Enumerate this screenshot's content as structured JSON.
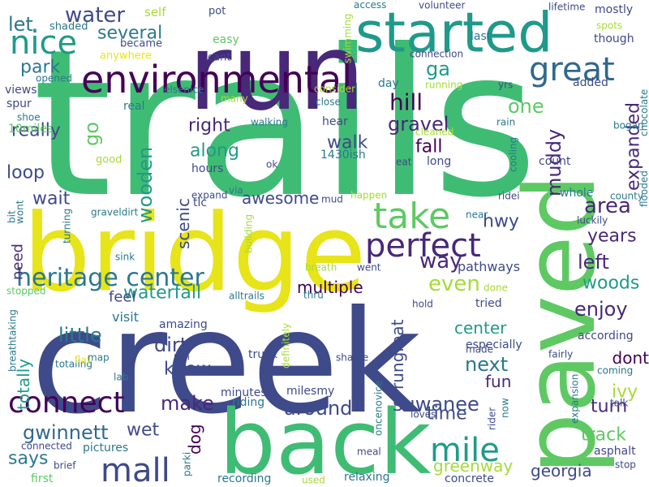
{
  "colors": {
    "background": "#ffffff",
    "green": "#3fbc73",
    "navy": "#3e4a89",
    "purple": "#482878",
    "yellow": "#e7e419",
    "lime": "#a5db36",
    "teal": "#2a788e",
    "cyan": "#1f9a8a",
    "indigo": "#31688e",
    "mint": "#5ec962",
    "violet": "#440154"
  },
  "words": [
    {
      "text": "trails",
      "color": "green"
    },
    {
      "text": "creek",
      "color": "navy"
    },
    {
      "text": "run",
      "color": "purple"
    },
    {
      "text": "bridge",
      "color": "yellow"
    },
    {
      "text": "paved",
      "color": "mint"
    },
    {
      "text": "back",
      "color": "green"
    },
    {
      "text": "started",
      "color": "cyan"
    },
    {
      "text": "environmental",
      "color": "violet"
    },
    {
      "text": "nice",
      "color": "cyan"
    },
    {
      "text": "great",
      "color": "indigo"
    },
    {
      "text": "take",
      "color": "mint"
    },
    {
      "text": "perfect",
      "color": "purple"
    },
    {
      "text": "heritage center",
      "color": "teal"
    },
    {
      "text": "connect",
      "color": "violet"
    },
    {
      "text": "mall",
      "color": "navy"
    },
    {
      "text": "mile",
      "color": "cyan"
    },
    {
      "text": "water",
      "color": "navy"
    },
    {
      "text": "let",
      "color": "teal"
    },
    {
      "text": "several",
      "color": "teal"
    },
    {
      "text": "park",
      "color": "teal"
    },
    {
      "text": "ga",
      "color": "cyan"
    },
    {
      "text": "hill",
      "color": "violet"
    },
    {
      "text": "one",
      "color": "mint"
    },
    {
      "text": "gravel",
      "color": "purple"
    },
    {
      "text": "really",
      "color": "navy"
    },
    {
      "text": "go",
      "color": "mint"
    },
    {
      "text": "right",
      "color": "purple"
    },
    {
      "text": "walk",
      "color": "navy"
    },
    {
      "text": "fall",
      "color": "violet"
    },
    {
      "text": "muddy",
      "color": "purple"
    },
    {
      "text": "expanded",
      "color": "purple"
    },
    {
      "text": "along",
      "color": "cyan"
    },
    {
      "text": "loop",
      "color": "navy"
    },
    {
      "text": "wooden",
      "color": "cyan"
    },
    {
      "text": "wait",
      "color": "navy"
    },
    {
      "text": "awesome",
      "color": "navy"
    },
    {
      "text": "area",
      "color": "purple"
    },
    {
      "text": "hwy",
      "color": "navy"
    },
    {
      "text": "way",
      "color": "purple"
    },
    {
      "text": "scenic",
      "color": "navy"
    },
    {
      "text": "years",
      "color": "purple"
    },
    {
      "text": "left",
      "color": "purple"
    },
    {
      "text": "woods",
      "color": "cyan"
    },
    {
      "text": "waterfall",
      "color": "cyan"
    },
    {
      "text": "multiple",
      "color": "violet"
    },
    {
      "text": "even",
      "color": "lime"
    },
    {
      "text": "enjoy",
      "color": "purple"
    },
    {
      "text": "little",
      "color": "teal"
    },
    {
      "text": "dirt",
      "color": "navy"
    },
    {
      "text": "totally",
      "color": "cyan"
    },
    {
      "text": "center",
      "color": "cyan"
    },
    {
      "text": "know",
      "color": "navy"
    },
    {
      "text": "next",
      "color": "teal"
    },
    {
      "text": "fun",
      "color": "purple"
    },
    {
      "text": "dont",
      "color": "violet"
    },
    {
      "text": "ivy",
      "color": "lime"
    },
    {
      "text": "make",
      "color": "purple"
    },
    {
      "text": "around",
      "color": "navy"
    },
    {
      "text": "rungreat",
      "color": "navy"
    },
    {
      "text": "suwanee",
      "color": "navy"
    },
    {
      "text": "time",
      "color": "navy"
    },
    {
      "text": "turn",
      "color": "purple"
    },
    {
      "text": "track",
      "color": "mint"
    },
    {
      "text": "gwinnett",
      "color": "indigo"
    },
    {
      "text": "wet",
      "color": "navy"
    },
    {
      "text": "dog",
      "color": "violet"
    },
    {
      "text": "says",
      "color": "teal"
    },
    {
      "text": "greenway",
      "color": "lime"
    },
    {
      "text": "georgia",
      "color": "navy"
    },
    {
      "text": "need",
      "color": "purple"
    },
    {
      "text": "feel",
      "color": "navy"
    },
    {
      "text": "visit",
      "color": "teal"
    },
    {
      "text": "pathways",
      "color": "navy"
    },
    {
      "text": "self",
      "color": "lime"
    },
    {
      "text": "pot",
      "color": "navy"
    },
    {
      "text": "access",
      "color": "teal"
    },
    {
      "text": "volunteer",
      "color": "navy"
    },
    {
      "text": "lifetime",
      "color": "navy"
    },
    {
      "text": "mostly",
      "color": "navy"
    },
    {
      "text": "spots",
      "color": "lime"
    },
    {
      "text": "though",
      "color": "navy"
    },
    {
      "text": "last",
      "color": "teal"
    },
    {
      "text": "shaded",
      "color": "teal"
    },
    {
      "text": "easy",
      "color": "mint"
    },
    {
      "text": "swimming",
      "color": "lime"
    },
    {
      "text": "became",
      "color": "navy"
    },
    {
      "text": "anywhere",
      "color": "yellow"
    },
    {
      "text": "cant",
      "color": "navy"
    },
    {
      "text": "connection",
      "color": "navy"
    },
    {
      "text": "opened",
      "color": "teal"
    },
    {
      "text": "elsenice",
      "color": "teal"
    },
    {
      "text": "consider",
      "color": "lime"
    },
    {
      "text": "day",
      "color": "teal"
    },
    {
      "text": "running",
      "color": "lime"
    },
    {
      "text": "yrs",
      "color": "navy"
    },
    {
      "text": "added",
      "color": "navy"
    },
    {
      "text": "views",
      "color": "navy"
    },
    {
      "text": "spur",
      "color": "navy"
    },
    {
      "text": "shoe",
      "color": "teal"
    },
    {
      "text": "real",
      "color": "teal"
    },
    {
      "text": "many",
      "color": "lime"
    },
    {
      "text": "close",
      "color": "teal"
    },
    {
      "text": "walking",
      "color": "teal"
    },
    {
      "text": "hear",
      "color": "navy"
    },
    {
      "text": "rain",
      "color": "teal"
    },
    {
      "text": "bogan",
      "color": "teal"
    },
    {
      "text": "chocolate",
      "color": "teal"
    },
    {
      "text": "10miles",
      "color": "mint"
    },
    {
      "text": "hours",
      "color": "navy"
    },
    {
      "text": "cleaned",
      "color": "lime"
    },
    {
      "text": "1430ish",
      "color": "teal"
    },
    {
      "text": "eat",
      "color": "navy"
    },
    {
      "text": "long",
      "color": "navy"
    },
    {
      "text": "cooling",
      "color": "teal"
    },
    {
      "text": "count",
      "color": "navy"
    },
    {
      "text": "good",
      "color": "lime"
    },
    {
      "text": "ok",
      "color": "navy"
    },
    {
      "text": "tlc",
      "color": "navy"
    },
    {
      "text": "via",
      "color": "teal"
    },
    {
      "text": "mud",
      "color": "navy"
    },
    {
      "text": "expand",
      "color": "navy"
    },
    {
      "text": "happen",
      "color": "lime"
    },
    {
      "text": "ridei",
      "color": "navy"
    },
    {
      "text": "whole",
      "color": "teal"
    },
    {
      "text": "county",
      "color": "teal"
    },
    {
      "text": "flooded",
      "color": "teal"
    },
    {
      "text": "bit",
      "color": "teal"
    },
    {
      "text": "wont",
      "color": "teal"
    },
    {
      "text": "graveldirt",
      "color": "teal"
    },
    {
      "text": "turning",
      "color": "teal"
    },
    {
      "text": "sink",
      "color": "teal"
    },
    {
      "text": "building",
      "color": "lime"
    },
    {
      "text": "near",
      "color": "teal"
    },
    {
      "text": "luckily",
      "color": "navy"
    },
    {
      "text": "breath",
      "color": "lime"
    },
    {
      "text": "went",
      "color": "navy"
    },
    {
      "text": "done",
      "color": "lime"
    },
    {
      "text": "stopped",
      "color": "mint"
    },
    {
      "text": "breathtaking",
      "color": "teal"
    },
    {
      "text": "alltrails",
      "color": "teal"
    },
    {
      "text": "thru",
      "color": "teal"
    },
    {
      "text": "hold",
      "color": "navy"
    },
    {
      "text": "tried",
      "color": "navy"
    },
    {
      "text": "amazing",
      "color": "navy"
    },
    {
      "text": "especially",
      "color": "navy"
    },
    {
      "text": "according",
      "color": "navy"
    },
    {
      "text": "totaling",
      "color": "teal"
    },
    {
      "text": "flat",
      "color": "yellow"
    },
    {
      "text": "map",
      "color": "teal"
    },
    {
      "text": "truck",
      "color": "navy"
    },
    {
      "text": "definitely",
      "color": "lime"
    },
    {
      "text": "made",
      "color": "navy"
    },
    {
      "text": "fairly",
      "color": "navy"
    },
    {
      "text": "shame",
      "color": "navy"
    },
    {
      "text": "coming",
      "color": "teal"
    },
    {
      "text": "lab",
      "color": "teal"
    },
    {
      "text": "ran",
      "color": "navy"
    },
    {
      "text": "minutes",
      "color": "navy"
    },
    {
      "text": "milesmy",
      "color": "navy"
    },
    {
      "text": "riding",
      "color": "teal"
    },
    {
      "text": "oncenovice",
      "color": "teal"
    },
    {
      "text": "loves",
      "color": "navy"
    },
    {
      "text": "rider",
      "color": "navy"
    },
    {
      "text": "now",
      "color": "teal"
    },
    {
      "text": "expansion",
      "color": "teal"
    },
    {
      "text": "talk",
      "color": "navy"
    },
    {
      "text": "asphalt",
      "color": "navy"
    },
    {
      "text": "stop",
      "color": "navy"
    },
    {
      "text": "connected",
      "color": "navy"
    },
    {
      "text": "pictures",
      "color": "teal"
    },
    {
      "text": "brief",
      "color": "navy"
    },
    {
      "text": "parki",
      "color": "teal"
    },
    {
      "text": "meal",
      "color": "navy"
    },
    {
      "text": "first",
      "color": "mint"
    },
    {
      "text": "recording",
      "color": "teal"
    },
    {
      "text": "used",
      "color": "lime"
    },
    {
      "text": "relaxing",
      "color": "teal"
    },
    {
      "text": "concrete",
      "color": "navy"
    }
  ]
}
